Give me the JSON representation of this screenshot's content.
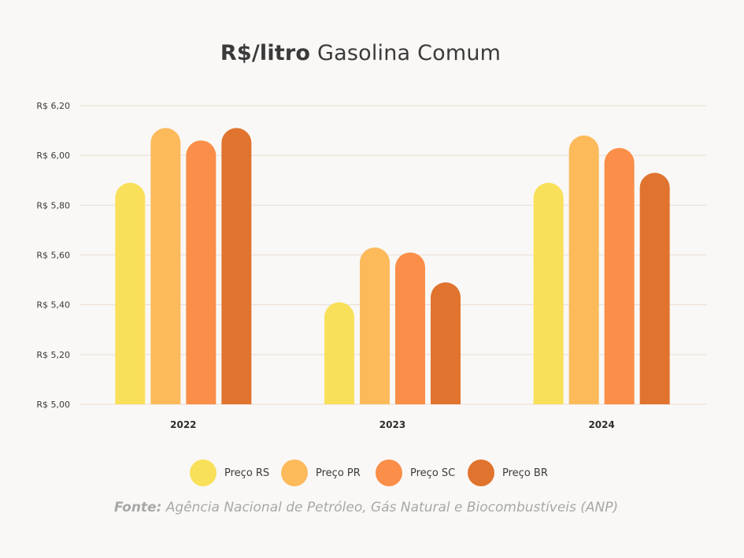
{
  "title": {
    "bold_part": "R$/litro",
    "normal_part": "Gasolina Comum"
  },
  "source": {
    "label": "Fonte:",
    "text": "Agência Nacional de Petróleo, Gás Natural e Biocombustíveis (ANP)"
  },
  "chart_data": {
    "type": "bar",
    "title": "R$/litro Gasolina Comum",
    "categories": [
      "2022",
      "2023",
      "2024"
    ],
    "series": [
      {
        "name": "Preço RS",
        "color": "#f9e05a",
        "values": [
          5.89,
          5.41,
          5.89
        ]
      },
      {
        "name": "Preço PR",
        "color": "#fcba5b",
        "values": [
          6.11,
          5.63,
          6.08
        ]
      },
      {
        "name": "Preço SC",
        "color": "#fb8e48",
        "values": [
          6.06,
          5.61,
          6.03
        ]
      },
      {
        "name": "Preço BR",
        "color": "#e0742f",
        "values": [
          6.11,
          5.49,
          5.93
        ]
      }
    ],
    "ylim": [
      5.0,
      6.2
    ],
    "yticks": [
      {
        "value": 5.0,
        "label": "R$ 5,00"
      },
      {
        "value": 5.2,
        "label": "R$ 5,20"
      },
      {
        "value": 5.4,
        "label": "R$ 5,40"
      },
      {
        "value": 5.6,
        "label": "R$ 5,60"
      },
      {
        "value": 5.8,
        "label": "R$ 5,80"
      },
      {
        "value": 6.0,
        "label": "R$ 6,00"
      },
      {
        "value": 6.2,
        "label": "R$ 6,20"
      }
    ],
    "grid": true,
    "legend_position": "bottom"
  }
}
